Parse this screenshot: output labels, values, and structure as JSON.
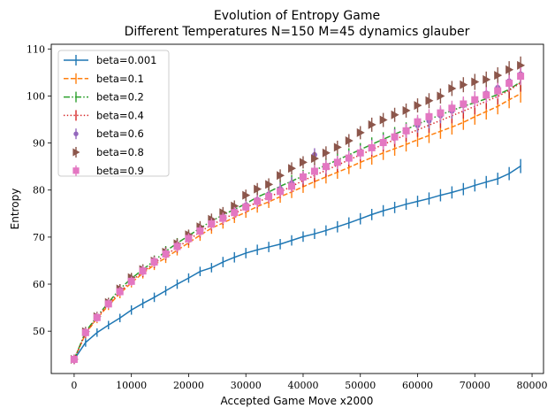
{
  "chart_data": {
    "type": "line",
    "title": "Evolution of Entropy Game",
    "subtitle": "Different Temperatures N=150 M=45 dynamics glauber",
    "xlabel": "Accepted Game Move x2000",
    "ylabel": "Entropy",
    "xlim": [
      -4000,
      82000
    ],
    "ylim": [
      41,
      111
    ],
    "xticks": [
      0,
      10000,
      20000,
      30000,
      40000,
      50000,
      60000,
      70000,
      80000
    ],
    "yticks": [
      50,
      60,
      70,
      80,
      90,
      100,
      110
    ],
    "grid": false,
    "legend": "top-left",
    "x": [
      0,
      2000,
      4000,
      6000,
      8000,
      10000,
      12000,
      14000,
      16000,
      18000,
      20000,
      22000,
      24000,
      26000,
      28000,
      30000,
      32000,
      34000,
      36000,
      38000,
      40000,
      42000,
      44000,
      46000,
      48000,
      50000,
      52000,
      54000,
      56000,
      58000,
      60000,
      62000,
      64000,
      66000,
      68000,
      70000,
      72000,
      74000,
      76000,
      78000
    ],
    "series": [
      {
        "name": "beta=0.001",
        "color": "#1f77b4",
        "style": "solid",
        "marker": "none",
        "values": [
          44.0,
          47.6,
          49.7,
          51.3,
          52.8,
          54.5,
          55.9,
          57.2,
          58.6,
          60.0,
          61.3,
          62.7,
          63.5,
          64.7,
          65.7,
          66.6,
          67.3,
          67.9,
          68.5,
          69.3,
          70.1,
          70.7,
          71.4,
          72.2,
          73.0,
          73.9,
          74.8,
          75.6,
          76.3,
          77.0,
          77.6,
          78.2,
          78.9,
          79.5,
          80.2,
          81.0,
          81.7,
          82.4,
          83.5,
          85.1
        ],
        "err": [
          0.9,
          0.9,
          0.9,
          0.9,
          0.9,
          1.0,
          1.0,
          1.0,
          1.0,
          1.0,
          1.0,
          1.0,
          1.0,
          1.1,
          1.1,
          1.1,
          1.1,
          1.1,
          1.1,
          1.1,
          1.1,
          1.1,
          1.1,
          1.2,
          1.2,
          1.2,
          1.2,
          1.2,
          1.2,
          1.2,
          1.2,
          1.3,
          1.3,
          1.3,
          1.3,
          1.3,
          1.3,
          1.3,
          1.4,
          1.5
        ]
      },
      {
        "name": "beta=0.1",
        "color": "#ff7f0e",
        "style": "dashed",
        "marker": "none",
        "values": [
          44.0,
          49.5,
          52.7,
          55.5,
          58.0,
          60.3,
          62.3,
          64.1,
          65.6,
          67.2,
          68.8,
          70.4,
          71.9,
          73.0,
          74.2,
          75.3,
          76.5,
          77.5,
          78.6,
          79.6,
          80.7,
          81.8,
          82.8,
          83.8,
          84.8,
          85.9,
          86.9,
          87.9,
          88.8,
          89.7,
          90.7,
          91.6,
          92.5,
          93.4,
          94.4,
          95.6,
          96.7,
          97.8,
          99.2,
          100.5
        ],
        "err": [
          1.0,
          1.0,
          1.0,
          1.0,
          1.0,
          1.0,
          1.1,
          1.1,
          1.1,
          1.1,
          1.1,
          1.2,
          1.2,
          1.2,
          1.2,
          1.2,
          1.3,
          1.3,
          1.3,
          1.3,
          1.3,
          1.4,
          1.4,
          1.4,
          1.4,
          1.4,
          1.5,
          1.5,
          1.5,
          1.5,
          1.5,
          1.6,
          1.6,
          1.6,
          1.6,
          1.7,
          1.7,
          1.7,
          1.8,
          1.9
        ]
      },
      {
        "name": "beta=0.2",
        "color": "#2ca02c",
        "style": "dashdot",
        "marker": "none",
        "values": [
          44.0,
          49.9,
          53.1,
          56.1,
          59.0,
          61.2,
          63.1,
          65.0,
          67.0,
          68.7,
          70.3,
          71.9,
          73.4,
          74.7,
          75.9,
          77.1,
          78.5,
          79.6,
          80.8,
          81.9,
          83.0,
          84.2,
          85.3,
          86.4,
          87.5,
          88.6,
          89.7,
          90.8,
          91.9,
          92.9,
          94.0,
          95.0,
          96.0,
          96.9,
          97.8,
          98.6,
          99.4,
          100.3,
          101.4,
          103.0
        ],
        "err": [
          1.0,
          1.0,
          1.0,
          1.0,
          1.0,
          1.0,
          1.1,
          1.1,
          1.1,
          1.1,
          1.1,
          1.2,
          1.2,
          1.2,
          1.2,
          1.2,
          1.3,
          1.3,
          1.3,
          1.3,
          1.3,
          1.4,
          1.4,
          1.4,
          1.4,
          1.4,
          1.5,
          1.5,
          1.5,
          1.5,
          1.5,
          1.6,
          1.6,
          1.6,
          1.6,
          1.7,
          1.7,
          1.7,
          1.8,
          1.9
        ]
      },
      {
        "name": "beta=0.4",
        "color": "#d62728",
        "style": "dotted",
        "marker": "none",
        "values": [
          44.0,
          49.6,
          52.9,
          55.8,
          58.4,
          60.7,
          62.6,
          64.5,
          66.2,
          67.8,
          69.4,
          71.1,
          72.6,
          73.8,
          75.0,
          76.3,
          77.4,
          78.5,
          79.6,
          80.8,
          82.0,
          83.1,
          84.2,
          85.3,
          86.4,
          87.5,
          88.6,
          89.7,
          90.7,
          91.8,
          92.8,
          93.8,
          94.8,
          95.8,
          96.8,
          97.8,
          98.9,
          99.9,
          101.2,
          102.8
        ],
        "err": [
          1.0,
          1.0,
          1.0,
          1.0,
          1.0,
          1.0,
          1.1,
          1.1,
          1.1,
          1.1,
          1.1,
          1.2,
          1.2,
          1.2,
          1.2,
          1.2,
          1.3,
          1.3,
          1.3,
          1.3,
          1.3,
          1.4,
          1.4,
          1.4,
          1.4,
          1.4,
          1.5,
          1.5,
          1.5,
          1.5,
          1.5,
          1.6,
          1.6,
          1.6,
          1.6,
          1.7,
          1.7,
          1.7,
          1.8,
          1.9
        ]
      },
      {
        "name": "beta=0.6",
        "color": "#9467bd",
        "style": "none",
        "marker": "circle",
        "values": [
          44.0,
          49.8,
          53.0,
          56.0,
          58.7,
          60.9,
          62.9,
          64.8,
          66.7,
          68.4,
          70.0,
          71.7,
          73.2,
          74.4,
          75.6,
          76.8,
          78.0,
          79.1,
          80.3,
          81.5,
          82.6,
          87.5,
          84.8,
          85.9,
          87.0,
          88.1,
          89.2,
          90.3,
          91.5,
          92.6,
          93.7,
          94.7,
          95.8,
          96.8,
          98.0,
          99.3,
          100.6,
          101.8,
          103.2,
          104.7
        ],
        "err": [
          1.0,
          1.0,
          1.0,
          1.0,
          1.0,
          1.0,
          1.1,
          1.1,
          1.1,
          1.1,
          1.1,
          1.2,
          1.2,
          1.2,
          1.2,
          1.2,
          1.3,
          1.3,
          1.3,
          1.3,
          1.3,
          1.4,
          1.4,
          1.4,
          1.4,
          1.4,
          1.5,
          1.5,
          1.5,
          1.5,
          1.5,
          1.6,
          1.6,
          1.6,
          1.6,
          1.7,
          1.7,
          1.7,
          1.8,
          1.9
        ]
      },
      {
        "name": "beta=0.8",
        "color": "#8c564b",
        "style": "none",
        "marker": "triangle-right",
        "values": [
          44.0,
          49.9,
          53.1,
          56.1,
          59.0,
          61.4,
          63.1,
          64.9,
          66.8,
          68.6,
          70.5,
          72.2,
          73.8,
          75.2,
          76.6,
          78.9,
          80.2,
          81.2,
          83.1,
          84.6,
          85.9,
          86.7,
          87.9,
          89.1,
          90.5,
          92.2,
          93.9,
          94.9,
          96.0,
          96.9,
          98.0,
          99.0,
          100.0,
          101.6,
          102.4,
          103.0,
          103.5,
          104.4,
          105.6,
          106.5
        ],
        "err": [
          1.0,
          1.0,
          1.0,
          1.0,
          1.0,
          1.0,
          1.1,
          1.1,
          1.1,
          1.1,
          1.1,
          1.2,
          1.2,
          1.2,
          1.2,
          1.2,
          1.3,
          1.3,
          1.3,
          1.3,
          1.3,
          1.4,
          1.4,
          1.4,
          1.4,
          1.4,
          1.5,
          1.5,
          1.5,
          1.5,
          1.5,
          1.6,
          1.6,
          1.6,
          1.6,
          1.7,
          1.7,
          1.7,
          1.8,
          1.9
        ]
      },
      {
        "name": "beta=0.9",
        "color": "#e377c2",
        "style": "none",
        "marker": "square",
        "values": [
          44.0,
          49.7,
          52.9,
          55.8,
          58.4,
          60.6,
          62.8,
          64.7,
          66.4,
          68.0,
          69.7,
          71.3,
          72.8,
          74.0,
          75.2,
          76.4,
          77.6,
          78.6,
          79.7,
          80.8,
          82.8,
          84.0,
          85.0,
          85.9,
          86.8,
          87.9,
          89.0,
          90.1,
          91.3,
          92.6,
          94.5,
          95.6,
          96.4,
          97.4,
          98.3,
          99.2,
          100.2,
          101.1,
          102.7,
          104.2
        ],
        "err": [
          1.0,
          1.0,
          1.0,
          1.0,
          1.0,
          1.0,
          1.1,
          1.1,
          1.1,
          1.1,
          1.1,
          1.2,
          1.2,
          1.2,
          1.2,
          1.2,
          1.3,
          1.3,
          1.3,
          1.3,
          1.3,
          1.4,
          1.4,
          1.4,
          1.4,
          1.4,
          1.5,
          1.5,
          1.5,
          1.5,
          1.5,
          1.6,
          1.6,
          1.6,
          1.6,
          1.7,
          1.7,
          1.7,
          1.8,
          1.9
        ]
      }
    ]
  }
}
